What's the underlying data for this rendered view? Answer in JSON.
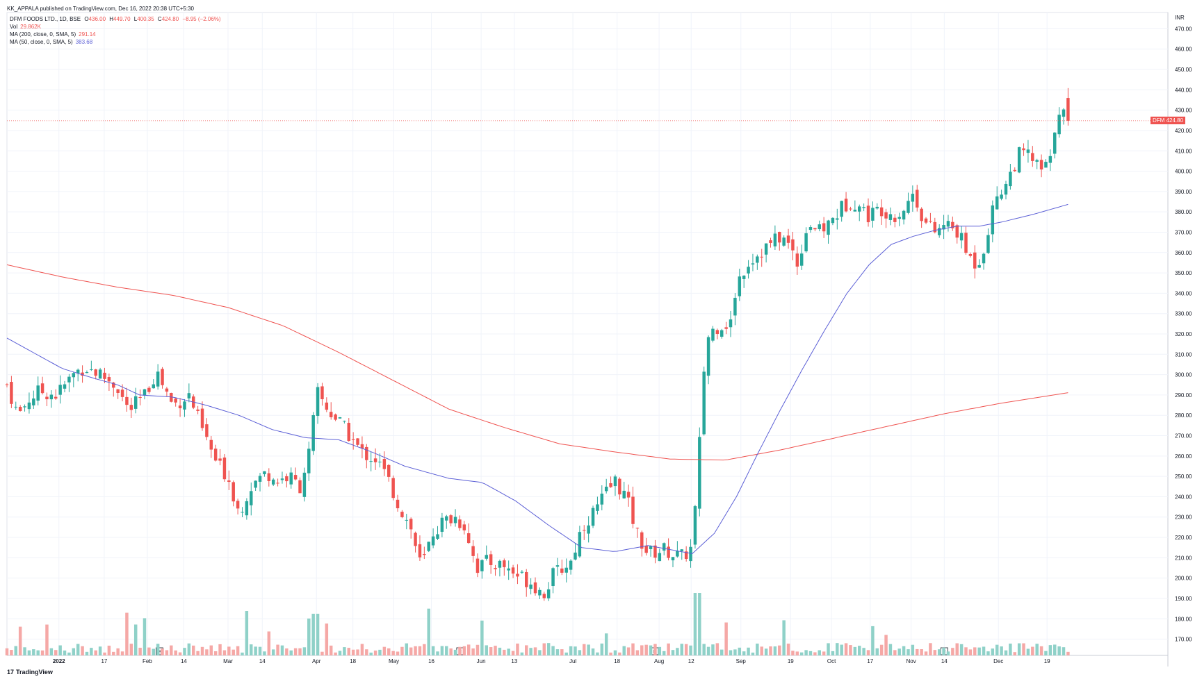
{
  "publisher": "KK_APPALA published on TradingView.com, Dec 16, 2022 20:38 UTC+5:30",
  "symbol_line": {
    "name": "DFM FOODS LTD., 1D, BSE",
    "open_label": "O",
    "open": "436.00",
    "high_label": "H",
    "high": "449.70",
    "low_label": "L",
    "low": "400.35",
    "close_label": "C",
    "close": "424.80",
    "change": "−8.95 (−2.06%)"
  },
  "indicators": [
    {
      "label": "Vol",
      "value": "29.862K",
      "color": "#ef5350"
    },
    {
      "label": "MA (200, close, 0, SMA, 5)",
      "value": "291.14",
      "color": "#ef5350"
    },
    {
      "label": "MA (50, close, 0, SMA, 5)",
      "value": "383.68",
      "color": "#5b5fd6"
    }
  ],
  "currency": "INR",
  "last_price_tag": {
    "symbol": "DFM",
    "price": "424.80"
  },
  "brand": {
    "logo": "17",
    "name": "TradingView"
  },
  "colors": {
    "up": "#26a69a",
    "down": "#ef5350",
    "vol_up": "#8fd1c8",
    "vol_down": "#f5a8a6",
    "ma200": "#ef5350",
    "ma50": "#5b5fd6",
    "grid": "#f0f3fa"
  },
  "chart_data": {
    "type": "candlestick",
    "title": "DFM FOODS LTD., 1D, BSE",
    "y_ticks": [
      170,
      180,
      190,
      200,
      210,
      220,
      230,
      240,
      250,
      260,
      270,
      280,
      290,
      300,
      310,
      320,
      330,
      340,
      350,
      360,
      370,
      380,
      390,
      400,
      410,
      420,
      430,
      440,
      450,
      460,
      470
    ],
    "ylim": [
      162,
      478
    ],
    "x_ticks": [
      {
        "label": "2022",
        "bold": true,
        "pos": 0.047
      },
      {
        "label": "17",
        "pos": 0.088
      },
      {
        "label": "Feb",
        "pos": 0.127
      },
      {
        "label": "14",
        "pos": 0.16
      },
      {
        "label": "Mar",
        "pos": 0.2
      },
      {
        "label": "14",
        "pos": 0.231
      },
      {
        "label": "Apr",
        "pos": 0.28
      },
      {
        "label": "18",
        "pos": 0.313
      },
      {
        "label": "May",
        "pos": 0.35
      },
      {
        "label": "16",
        "pos": 0.384
      },
      {
        "label": "Jun",
        "pos": 0.429
      },
      {
        "label": "13",
        "pos": 0.459
      },
      {
        "label": "Jul",
        "pos": 0.512
      },
      {
        "label": "18",
        "pos": 0.552
      },
      {
        "label": "Aug",
        "pos": 0.59
      },
      {
        "label": "12",
        "pos": 0.619
      },
      {
        "label": "Sep",
        "pos": 0.664
      },
      {
        "label": "19",
        "pos": 0.709
      },
      {
        "label": "Oct",
        "pos": 0.746
      },
      {
        "label": "17",
        "pos": 0.781
      },
      {
        "label": "Nov",
        "pos": 0.818
      },
      {
        "label": "14",
        "pos": 0.848
      },
      {
        "label": "Dec",
        "pos": 0.897
      },
      {
        "label": "19",
        "pos": 0.941
      }
    ],
    "earnings_markers": [
      0.138,
      0.41,
      0.586,
      0.848
    ],
    "price_keypoints": [
      [
        0.0,
        295
      ],
      [
        0.01,
        280
      ],
      [
        0.02,
        288
      ],
      [
        0.03,
        292
      ],
      [
        0.045,
        290
      ],
      [
        0.06,
        300
      ],
      [
        0.07,
        304
      ],
      [
        0.085,
        300
      ],
      [
        0.1,
        294
      ],
      [
        0.11,
        282
      ],
      [
        0.125,
        290
      ],
      [
        0.135,
        302
      ],
      [
        0.15,
        285
      ],
      [
        0.165,
        290
      ],
      [
        0.175,
        275
      ],
      [
        0.19,
        256
      ],
      [
        0.2,
        250
      ],
      [
        0.21,
        232
      ],
      [
        0.22,
        245
      ],
      [
        0.235,
        252
      ],
      [
        0.245,
        248
      ],
      [
        0.255,
        250
      ],
      [
        0.265,
        245
      ],
      [
        0.275,
        265
      ],
      [
        0.28,
        292
      ],
      [
        0.29,
        283
      ],
      [
        0.3,
        277
      ],
      [
        0.31,
        270
      ],
      [
        0.32,
        262
      ],
      [
        0.335,
        258
      ],
      [
        0.345,
        248
      ],
      [
        0.355,
        235
      ],
      [
        0.365,
        225
      ],
      [
        0.375,
        205
      ],
      [
        0.385,
        222
      ],
      [
        0.395,
        228
      ],
      [
        0.405,
        230
      ],
      [
        0.415,
        225
      ],
      [
        0.425,
        205
      ],
      [
        0.435,
        208
      ],
      [
        0.45,
        206
      ],
      [
        0.46,
        202
      ],
      [
        0.475,
        198
      ],
      [
        0.485,
        192
      ],
      [
        0.495,
        202
      ],
      [
        0.51,
        208
      ],
      [
        0.52,
        225
      ],
      [
        0.53,
        232
      ],
      [
        0.54,
        240
      ],
      [
        0.55,
        248
      ],
      [
        0.56,
        240
      ],
      [
        0.57,
        222
      ],
      [
        0.58,
        212
      ],
      [
        0.595,
        214
      ],
      [
        0.61,
        210
      ],
      [
        0.62,
        215
      ],
      [
        0.625,
        250
      ],
      [
        0.63,
        300
      ],
      [
        0.635,
        320
      ],
      [
        0.645,
        325
      ],
      [
        0.655,
        325
      ],
      [
        0.66,
        345
      ],
      [
        0.67,
        355
      ],
      [
        0.685,
        362
      ],
      [
        0.7,
        368
      ],
      [
        0.71,
        362
      ],
      [
        0.715,
        355
      ],
      [
        0.725,
        375
      ],
      [
        0.735,
        370
      ],
      [
        0.745,
        375
      ],
      [
        0.755,
        382
      ],
      [
        0.765,
        386
      ],
      [
        0.78,
        378
      ],
      [
        0.79,
        382
      ],
      [
        0.805,
        378
      ],
      [
        0.815,
        384
      ],
      [
        0.82,
        390
      ],
      [
        0.83,
        375
      ],
      [
        0.84,
        370
      ],
      [
        0.85,
        374
      ],
      [
        0.86,
        370
      ],
      [
        0.87,
        358
      ],
      [
        0.878,
        354
      ],
      [
        0.885,
        365
      ],
      [
        0.895,
        388
      ],
      [
        0.905,
        395
      ],
      [
        0.915,
        408
      ],
      [
        0.925,
        408
      ],
      [
        0.935,
        400
      ],
      [
        0.945,
        405
      ],
      [
        0.95,
        433
      ],
      [
        0.96,
        424.8
      ]
    ],
    "ma200_keypoints": [
      [
        0.0,
        354
      ],
      [
        0.05,
        348
      ],
      [
        0.1,
        343
      ],
      [
        0.15,
        339
      ],
      [
        0.2,
        333
      ],
      [
        0.25,
        324
      ],
      [
        0.3,
        311
      ],
      [
        0.35,
        297
      ],
      [
        0.4,
        283
      ],
      [
        0.45,
        274
      ],
      [
        0.5,
        266
      ],
      [
        0.55,
        262
      ],
      [
        0.6,
        258.5
      ],
      [
        0.65,
        258
      ],
      [
        0.7,
        263
      ],
      [
        0.75,
        269
      ],
      [
        0.8,
        275
      ],
      [
        0.85,
        281
      ],
      [
        0.9,
        286
      ],
      [
        0.96,
        291.14
      ]
    ],
    "ma50_keypoints": [
      [
        0.0,
        318
      ],
      [
        0.02,
        312
      ],
      [
        0.05,
        303
      ],
      [
        0.08,
        298
      ],
      [
        0.1,
        295
      ],
      [
        0.12,
        290
      ],
      [
        0.15,
        289
      ],
      [
        0.18,
        285
      ],
      [
        0.21,
        280
      ],
      [
        0.24,
        273
      ],
      [
        0.27,
        269
      ],
      [
        0.3,
        268
      ],
      [
        0.33,
        262
      ],
      [
        0.36,
        255
      ],
      [
        0.4,
        249
      ],
      [
        0.43,
        247
      ],
      [
        0.46,
        238
      ],
      [
        0.49,
        226
      ],
      [
        0.52,
        215
      ],
      [
        0.55,
        213
      ],
      [
        0.58,
        216
      ],
      [
        0.6,
        214
      ],
      [
        0.62,
        212
      ],
      [
        0.64,
        222
      ],
      [
        0.66,
        240
      ],
      [
        0.68,
        262
      ],
      [
        0.7,
        283
      ],
      [
        0.72,
        303
      ],
      [
        0.74,
        322
      ],
      [
        0.76,
        340
      ],
      [
        0.78,
        354
      ],
      [
        0.8,
        364
      ],
      [
        0.82,
        368
      ],
      [
        0.84,
        371
      ],
      [
        0.86,
        373
      ],
      [
        0.88,
        373
      ],
      [
        0.9,
        375
      ],
      [
        0.93,
        379
      ],
      [
        0.96,
        383.68
      ]
    ]
  }
}
